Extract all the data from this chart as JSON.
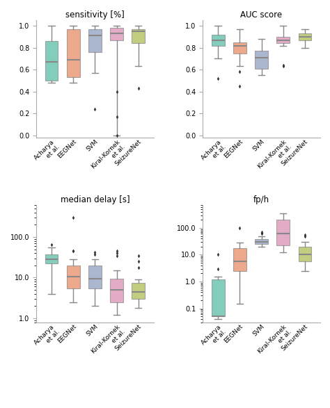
{
  "categories": [
    "Acharya\net al.",
    "EEGNet",
    "SVM",
    "Kiral-Kornek\net al.",
    "SeizureNet"
  ],
  "colors": [
    "#4db89e",
    "#e8845a",
    "#8899bb",
    "#d988b0",
    "#a8b84a"
  ],
  "titles": [
    "sensitivity [%]",
    "AUC score",
    "median delay [s]",
    "fp/h"
  ],
  "sensitivity": {
    "whislo": [
      0.48,
      0.48,
      0.57,
      0.0,
      0.63
    ],
    "q1": [
      0.5,
      0.53,
      0.76,
      0.87,
      0.84
    ],
    "med": [
      0.67,
      0.69,
      0.91,
      0.93,
      0.95
    ],
    "q3": [
      0.86,
      0.97,
      0.97,
      0.98,
      0.97
    ],
    "whishi": [
      1.0,
      1.0,
      1.0,
      1.0,
      1.0
    ],
    "fliers": [
      [],
      [],
      [
        0.24
      ],
      [
        0.4,
        0.17,
        0.0
      ],
      [
        0.43
      ]
    ]
  },
  "auc": {
    "whislo": [
      0.7,
      0.63,
      0.55,
      0.82,
      0.8
    ],
    "q1": [
      0.82,
      0.75,
      0.61,
      0.84,
      0.87
    ],
    "med": [
      0.87,
      0.82,
      0.71,
      0.87,
      0.9
    ],
    "q3": [
      0.92,
      0.85,
      0.77,
      0.9,
      0.93
    ],
    "whishi": [
      1.0,
      0.97,
      0.88,
      1.0,
      0.97
    ],
    "fliers": [
      [
        0.52
      ],
      [
        0.58,
        0.45
      ],
      [],
      [
        0.63,
        0.64
      ],
      []
    ]
  },
  "delay": {
    "whislo": [
      4.0,
      2.5,
      2.0,
      1.2,
      1.8
    ],
    "q1": [
      22.0,
      5.5,
      5.5,
      2.5,
      3.0
    ],
    "med": [
      28.0,
      10.5,
      9.5,
      5.0,
      4.5
    ],
    "q3": [
      38.0,
      20.0,
      20.0,
      9.5,
      7.5
    ],
    "whishi": [
      55.0,
      28.0,
      28.0,
      15.0,
      9.0
    ],
    "fliers": [
      [
        65.0
      ],
      [
        300.0,
        45.0,
        45.0
      ],
      [
        38.0,
        42.0
      ],
      [
        35.0,
        40.0,
        45.0
      ],
      [
        18.0,
        25.0,
        35.0
      ]
    ]
  },
  "fph": {
    "whislo": [
      0.04,
      0.15,
      20.0,
      12.0,
      2.5
    ],
    "q1": [
      0.05,
      2.5,
      25.0,
      22.0,
      5.5
    ],
    "med": [
      0.05,
      5.5,
      30.0,
      60.0,
      10.0
    ],
    "q3": [
      1.2,
      18.0,
      38.0,
      200.0,
      20.0
    ],
    "whishi": [
      1.5,
      28.0,
      50.0,
      350.0,
      30.0
    ],
    "fliers": [
      [
        3.0,
        10.0
      ],
      [
        100.0
      ],
      [
        60.0,
        65.0,
        70.0
      ],
      [],
      [
        50.0,
        55.0
      ]
    ]
  }
}
